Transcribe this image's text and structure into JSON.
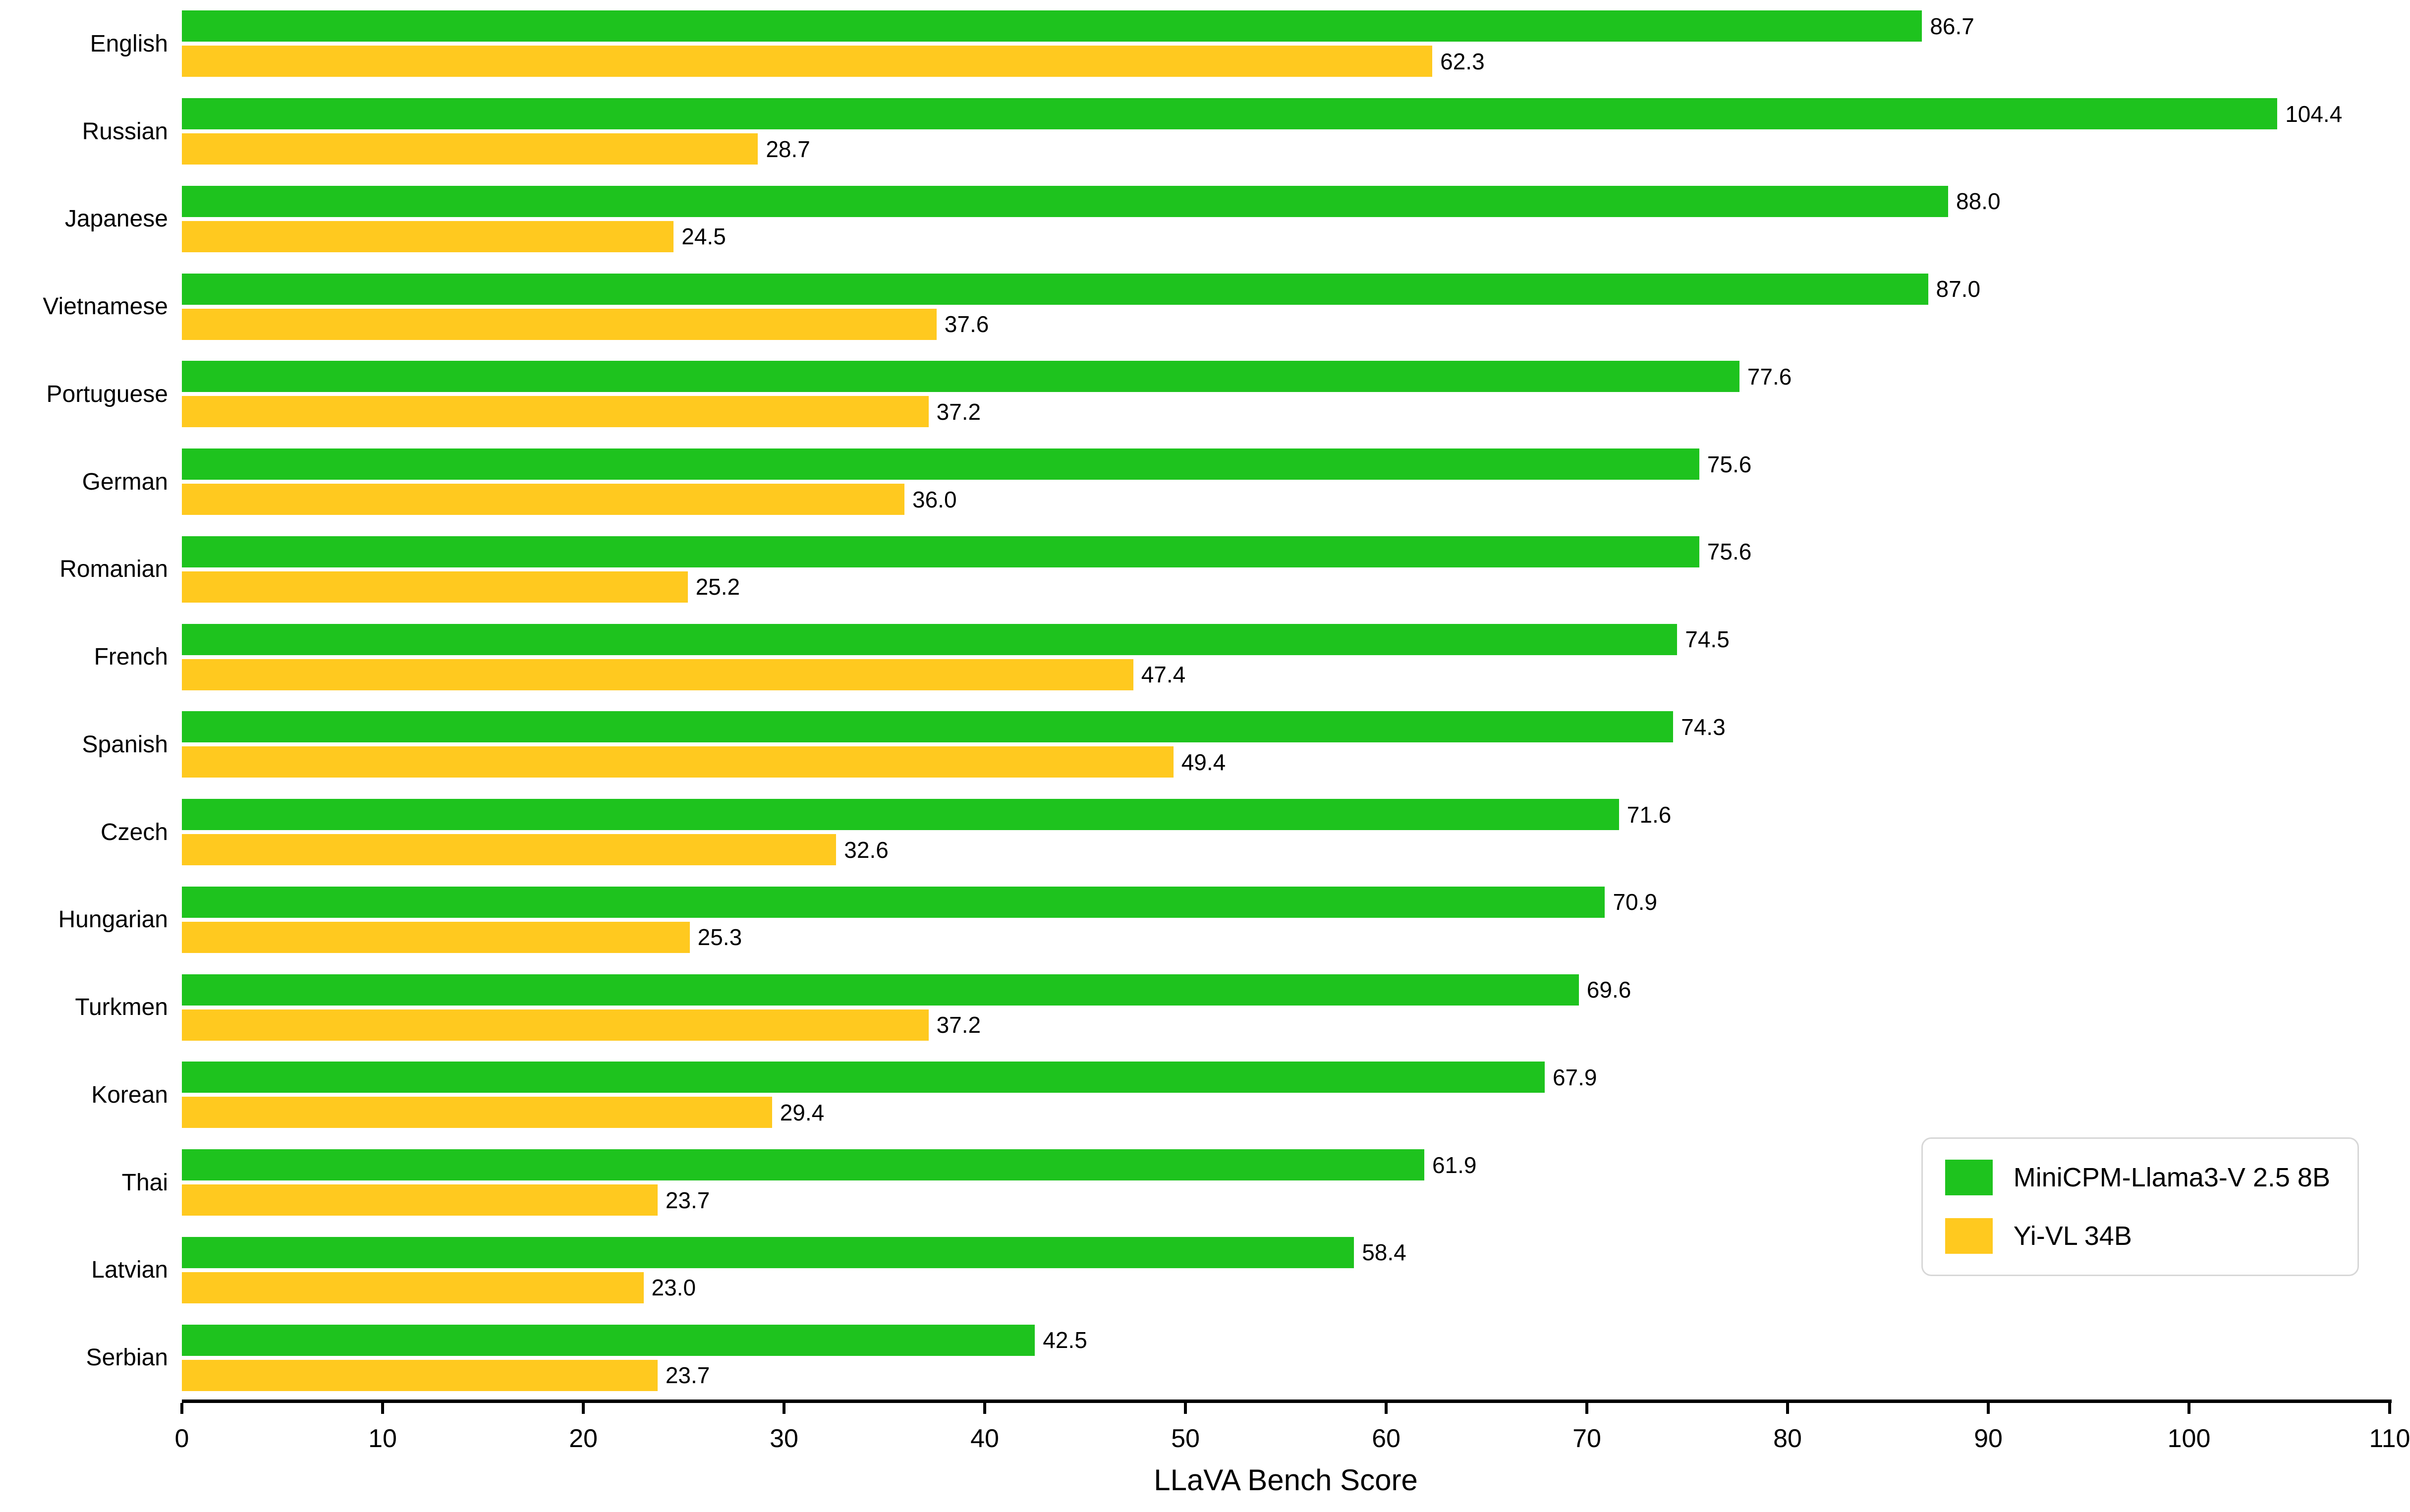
{
  "chart_data": {
    "type": "bar",
    "orientation": "horizontal",
    "title": "",
    "xlabel": "LLaVA Bench Score",
    "ylabel": "",
    "xlim": [
      0,
      110
    ],
    "xticks": [
      "0",
      "10",
      "20",
      "30",
      "40",
      "50",
      "60",
      "70",
      "80",
      "90",
      "100",
      "110"
    ],
    "grid": false,
    "legend_position": "lower right",
    "categories": [
      "English",
      "Russian",
      "Japanese",
      "Vietnamese",
      "Portuguese",
      "German",
      "Romanian",
      "French",
      "Spanish",
      "Czech",
      "Hungarian",
      "Turkmen",
      "Korean",
      "Thai",
      "Latvian",
      "Serbian"
    ],
    "series": [
      {
        "name": "MiniCPM-Llama3-V 2.5 8B",
        "color": "#1EC31E",
        "values": [
          86.7,
          104.4,
          88.0,
          87.0,
          77.6,
          75.6,
          75.6,
          74.5,
          74.3,
          71.6,
          70.9,
          69.6,
          67.9,
          61.9,
          58.4,
          42.5
        ],
        "labels": [
          "86.7",
          "104.4",
          "88.0",
          "87.0",
          "77.6",
          "75.6",
          "75.6",
          "74.5",
          "74.3",
          "71.6",
          "70.9",
          "69.6",
          "67.9",
          "61.9",
          "58.4",
          "42.5"
        ]
      },
      {
        "name": "Yi-VL 34B",
        "color": "#FFC91F",
        "values": [
          62.3,
          28.7,
          24.5,
          37.6,
          37.2,
          36.0,
          25.2,
          47.4,
          49.4,
          32.6,
          25.3,
          37.2,
          29.4,
          23.7,
          23.0,
          23.7
        ],
        "labels": [
          "62.3",
          "28.7",
          "24.5",
          "37.6",
          "37.2",
          "36.0",
          "25.2",
          "47.4",
          "49.4",
          "32.6",
          "25.3",
          "37.2",
          "29.4",
          "23.7",
          "23.0",
          "23.7"
        ]
      }
    ]
  }
}
